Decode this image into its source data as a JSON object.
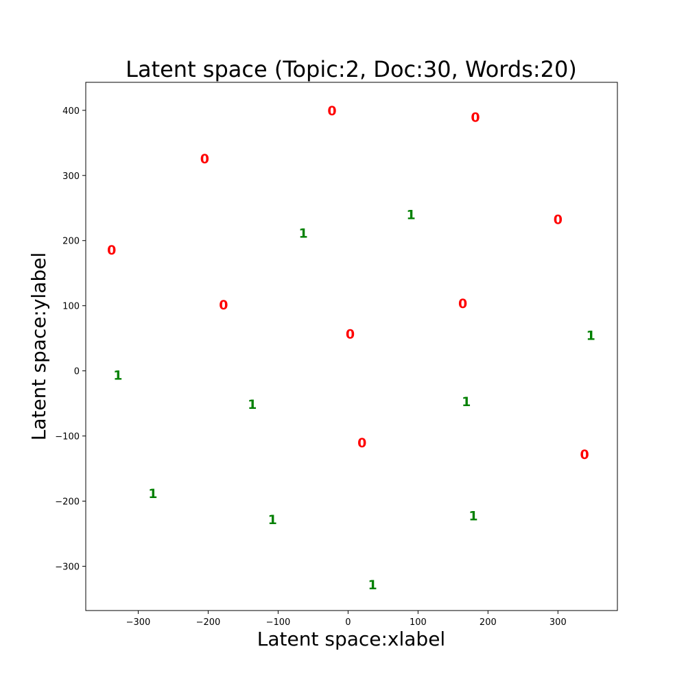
{
  "chart_data": {
    "type": "scatter",
    "title": "Latent space (Topic:2, Doc:30, Words:20)",
    "xlabel": "Latent space:xlabel",
    "ylabel": "Latent space:ylabel",
    "xlim": [
      -375,
      385
    ],
    "ylim": [
      -368,
      443
    ],
    "xticks": [
      -300,
      -200,
      -100,
      0,
      100,
      200,
      300
    ],
    "yticks": [
      -300,
      -200,
      -100,
      0,
      100,
      200,
      300,
      400
    ],
    "xtick_labels": [
      "−300",
      "−200",
      "−100",
      "0",
      "100",
      "200",
      "300"
    ],
    "ytick_labels": [
      "−300",
      "−200",
      "−100",
      "0",
      "100",
      "200",
      "300",
      "400"
    ],
    "grid": false,
    "colors": {
      "0": "#ff0000",
      "1": "#008000"
    },
    "points": [
      {
        "x": -23,
        "y": 400,
        "label": "0"
      },
      {
        "x": 182,
        "y": 390,
        "label": "0"
      },
      {
        "x": -205,
        "y": 326,
        "label": "0"
      },
      {
        "x": 300,
        "y": 233,
        "label": "0"
      },
      {
        "x": -338,
        "y": 186,
        "label": "0"
      },
      {
        "x": -178,
        "y": 102,
        "label": "0"
      },
      {
        "x": 164,
        "y": 104,
        "label": "0"
      },
      {
        "x": 3,
        "y": 57,
        "label": "0"
      },
      {
        "x": 20,
        "y": -110,
        "label": "0"
      },
      {
        "x": 338,
        "y": -128,
        "label": "0"
      },
      {
        "x": 90,
        "y": 240,
        "label": "1"
      },
      {
        "x": -64,
        "y": 212,
        "label": "1"
      },
      {
        "x": 347,
        "y": 55,
        "label": "1"
      },
      {
        "x": -329,
        "y": -6,
        "label": "1"
      },
      {
        "x": -137,
        "y": -51,
        "label": "1"
      },
      {
        "x": 169,
        "y": -47,
        "label": "1"
      },
      {
        "x": -279,
        "y": -188,
        "label": "1"
      },
      {
        "x": -108,
        "y": -228,
        "label": "1"
      },
      {
        "x": 179,
        "y": -222,
        "label": "1"
      },
      {
        "x": 35,
        "y": -328,
        "label": "1"
      }
    ]
  }
}
